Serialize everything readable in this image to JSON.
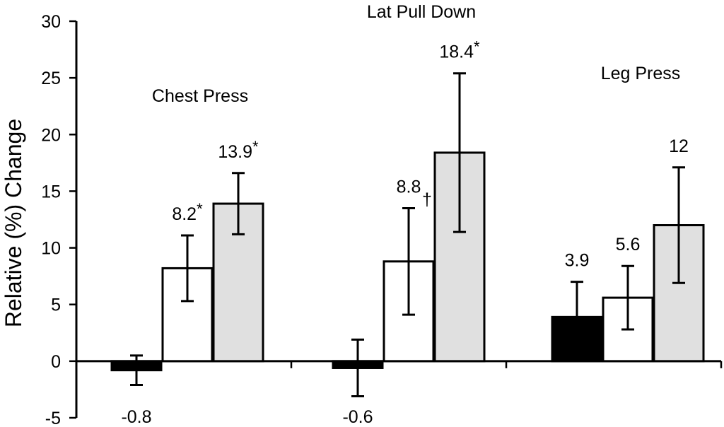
{
  "chart_data": {
    "type": "bar",
    "ylabel": "Relative (%) Change",
    "ylim": [
      -5,
      30
    ],
    "yticks": [
      -5,
      0,
      5,
      10,
      15,
      20,
      25,
      30
    ],
    "grid": false,
    "legend": "none",
    "colors": [
      "#000000",
      "#ffffff",
      "#e0e0e0"
    ],
    "groups": [
      {
        "label": "Chest Press",
        "bars": [
          {
            "value": -0.8,
            "err_low": -2.1,
            "err_high": 0.5,
            "label": "-0.8",
            "mark": ""
          },
          {
            "value": 8.2,
            "err_low": 5.3,
            "err_high": 11.1,
            "label": "8.2",
            "mark": "*"
          },
          {
            "value": 13.9,
            "err_low": 11.2,
            "err_high": 16.6,
            "label": "13.9",
            "mark": "*"
          }
        ]
      },
      {
        "label": "Lat Pull Down",
        "bars": [
          {
            "value": -0.6,
            "err_low": -3.1,
            "err_high": 1.9,
            "label": "-0.6",
            "mark": ""
          },
          {
            "value": 8.8,
            "err_low": 4.1,
            "err_high": 13.5,
            "label": "8.8",
            "mark": "†"
          },
          {
            "value": 18.4,
            "err_low": 11.4,
            "err_high": 25.4,
            "label": "18.4",
            "mark": "*"
          }
        ]
      },
      {
        "label": "Leg Press",
        "bars": [
          {
            "value": 3.9,
            "err_low": 0.8,
            "err_high": 7.0,
            "label": "3.9",
            "mark": ""
          },
          {
            "value": 5.6,
            "err_low": 2.8,
            "err_high": 8.4,
            "label": "5.6",
            "mark": ""
          },
          {
            "value": 12.0,
            "err_low": 6.9,
            "err_high": 17.1,
            "label": "12",
            "mark": ""
          }
        ]
      }
    ]
  }
}
